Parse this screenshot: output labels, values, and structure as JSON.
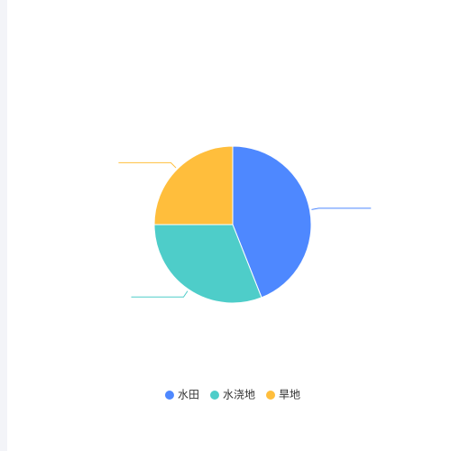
{
  "chart_data": {
    "type": "pie",
    "categories": [
      "水田",
      "水浇地",
      "旱地"
    ],
    "values": [
      44,
      31,
      25
    ],
    "colors": [
      "#4e88ff",
      "#4ecdc9",
      "#ffbe3c"
    ],
    "legend": "bottom"
  }
}
